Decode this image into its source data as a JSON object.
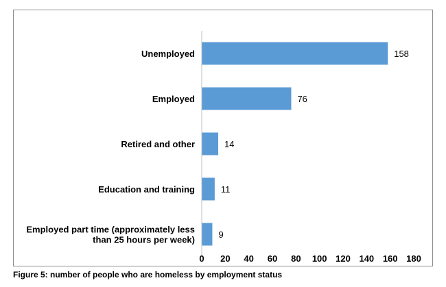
{
  "caption": "Figure 5: number of people who are homeless by employment status",
  "chart_data": {
    "type": "bar",
    "orientation": "horizontal",
    "categories": [
      "Unemployed",
      "Employed",
      "Retired and other",
      "Education and training",
      "Employed part time (approximately less than 25 hours per week)"
    ],
    "category_lines": [
      [
        "Unemployed"
      ],
      [
        "Employed"
      ],
      [
        "Retired and other"
      ],
      [
        "Education and training"
      ],
      [
        "Employed part time (approximately less",
        "than 25 hours per week)"
      ]
    ],
    "values": [
      158,
      76,
      14,
      11,
      9
    ],
    "xlim": [
      0,
      180
    ],
    "x_ticks": [
      0,
      20,
      40,
      60,
      80,
      100,
      120,
      140,
      160,
      180
    ],
    "data_labels": true,
    "grid": false,
    "legend": "none",
    "bar_color": "#5b9bd5"
  }
}
